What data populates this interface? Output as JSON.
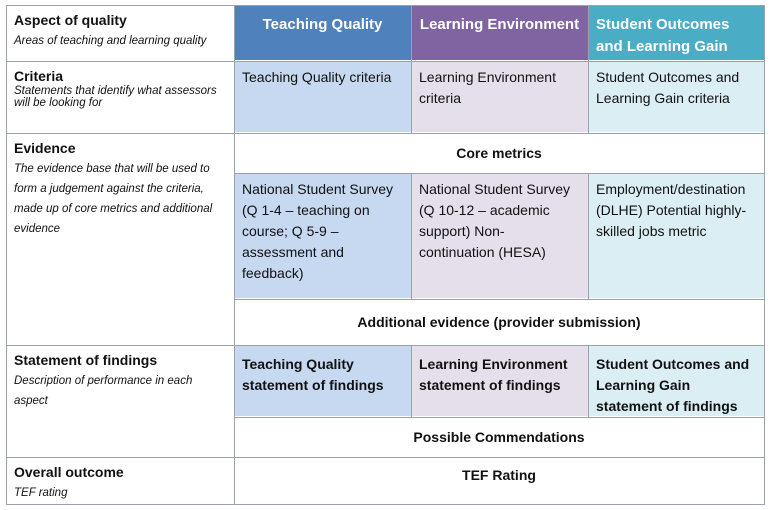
{
  "aspect": {
    "title": "Aspect of quality",
    "desc": "Areas of teaching and learning quality"
  },
  "criteria": {
    "title": "Criteria",
    "desc": "Statements that identify what assessors will be looking for"
  },
  "evidence": {
    "title": "Evidence",
    "desc": "The evidence base that will be used to form a judgement against the criteria, made up of core metrics and additional evidence"
  },
  "findings": {
    "title": "Statement of findings",
    "desc": "Description of performance in each aspect"
  },
  "outcome": {
    "title": "Overall outcome",
    "desc": "TEF rating"
  },
  "columns": {
    "teaching": {
      "header": "Teaching Quality",
      "criteria": "Teaching Quality criteria",
      "metrics": "National Student Survey (Q 1-4  – teaching on course; Q 5-9  – assessment and feedback)",
      "findings": "Teaching Quality statement of findings"
    },
    "learning": {
      "header": "Learning Environment",
      "criteria": "Learning Environment criteria",
      "metrics": "National Student Survey (Q 10-12 – academic support) Non-continuation (HESA)",
      "findings": "Learning Environment statement of findings"
    },
    "outcomes": {
      "header": "Student Outcomes and Learning Gain",
      "criteria": "Student Outcomes and Learning Gain criteria",
      "metrics": "Employment/destination (DLHE) Potential highly-skilled jobs metric",
      "findings": "Student Outcomes and Learning Gain statement of findings"
    }
  },
  "bands": {
    "core_metrics": "Core metrics",
    "additional_evidence": "Additional evidence (provider submission)",
    "commendations": "Possible Commendations",
    "tef_rating": "TEF Rating"
  },
  "colors": {
    "teaching_header": "#4f81bd",
    "learning_header": "#8064a2",
    "outcomes_header": "#4bacc6",
    "teaching_fill": "#c6d9f1",
    "learning_fill": "#e5dfec",
    "outcomes_fill": "#dbeef4"
  }
}
